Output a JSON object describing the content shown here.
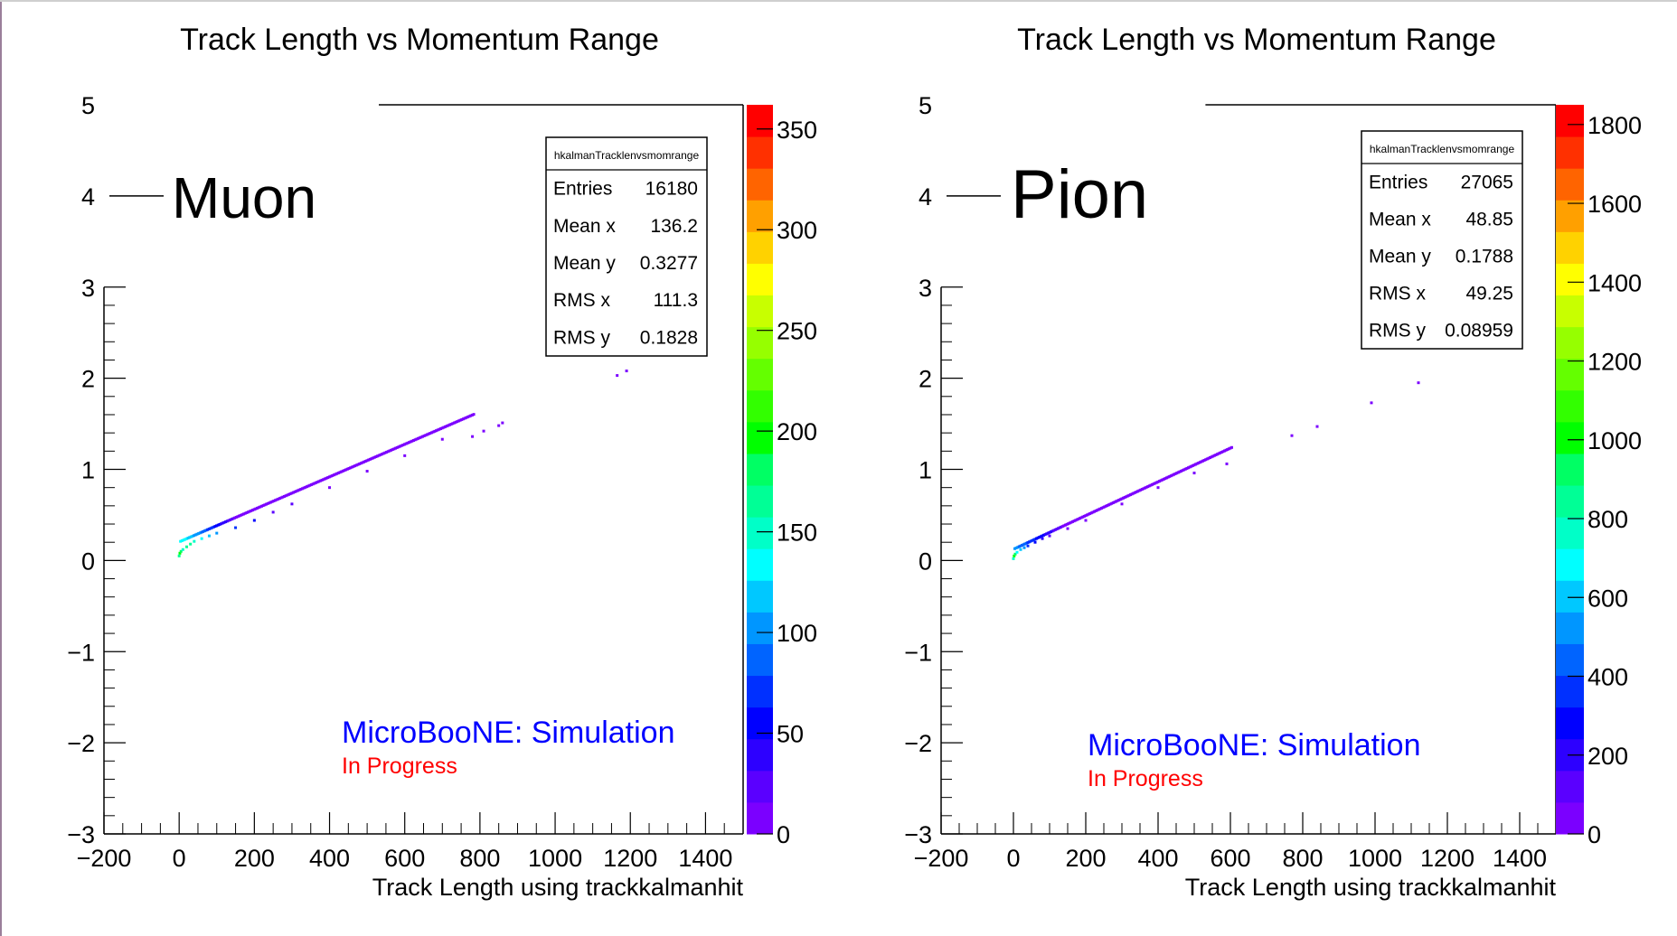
{
  "chart_data": [
    {
      "type": "heatmap",
      "title": "Track Length vs Momentum Range",
      "xlabel": "Track Length using trackkalmanhit",
      "ylabel": "",
      "xlim": [
        -200,
        1500
      ],
      "ylim": [
        -3,
        5
      ],
      "x_ticks": [
        "−200",
        "0",
        "200",
        "400",
        "600",
        "800",
        "1000",
        "1200",
        "1400"
      ],
      "x_tick_values": [
        -200,
        0,
        200,
        400,
        600,
        800,
        1000,
        1200,
        1400
      ],
      "y_ticks": [
        "−3",
        "−2",
        "−1",
        "0",
        "1",
        "2",
        "3",
        "4",
        "5"
      ],
      "y_tick_values": [
        -3,
        -2,
        -1,
        0,
        1,
        2,
        3,
        4,
        5
      ],
      "particle_label": "Muon",
      "particle_label_y": 4,
      "stats": {
        "name": "hkalmanTracklenvsmomrange",
        "rows": [
          {
            "label": "Entries",
            "value": "16180"
          },
          {
            "label": "Mean x",
            "value": "136.2"
          },
          {
            "label": "Mean y",
            "value": "0.3277"
          },
          {
            "label": "RMS x",
            "value": "111.3"
          },
          {
            "label": "RMS y",
            "value": "0.1828"
          }
        ]
      },
      "z_ticks": [
        "0",
        "50",
        "100",
        "150",
        "200",
        "250",
        "300",
        "350"
      ],
      "z_tick_values": [
        0,
        50,
        100,
        150,
        200,
        250,
        300,
        350
      ],
      "z_max": 362,
      "trend": {
        "slope": 0.001786,
        "intercept": 0.21,
        "x_start": 0,
        "x_end": 780
      },
      "points": [
        [
          0,
          0.05,
          160
        ],
        [
          2,
          0.08,
          200
        ],
        [
          5,
          0.1,
          180
        ],
        [
          10,
          0.12,
          150
        ],
        [
          20,
          0.15,
          170
        ],
        [
          30,
          0.18,
          160
        ],
        [
          40,
          0.21,
          150
        ],
        [
          60,
          0.24,
          140
        ],
        [
          80,
          0.27,
          120
        ],
        [
          100,
          0.3,
          100
        ],
        [
          150,
          0.36,
          70
        ],
        [
          200,
          0.44,
          50
        ],
        [
          250,
          0.53,
          30
        ],
        [
          300,
          0.62,
          20
        ],
        [
          400,
          0.8,
          15
        ],
        [
          500,
          0.98,
          10
        ],
        [
          600,
          1.15,
          8
        ],
        [
          700,
          1.33,
          5
        ],
        [
          780,
          1.36,
          4
        ],
        [
          810,
          1.42,
          2
        ],
        [
          850,
          1.48,
          2
        ],
        [
          860,
          1.51,
          2
        ],
        [
          1165,
          2.03,
          2
        ],
        [
          1190,
          2.08,
          2
        ]
      ],
      "watermark": {
        "line1": "MicroBooNE: Simulation",
        "line2": "In Progress"
      }
    },
    {
      "type": "heatmap",
      "title": "Track Length vs Momentum Range",
      "xlabel": "Track Length using trackkalmanhit",
      "ylabel": "",
      "xlim": [
        -200,
        1500
      ],
      "ylim": [
        -3,
        5
      ],
      "x_ticks": [
        "−200",
        "0",
        "200",
        "400",
        "600",
        "800",
        "1000",
        "1200",
        "1400"
      ],
      "x_tick_values": [
        -200,
        0,
        200,
        400,
        600,
        800,
        1000,
        1200,
        1400
      ],
      "y_ticks": [
        "−3",
        "−2",
        "−1",
        "0",
        "1",
        "2",
        "3",
        "4",
        "5"
      ],
      "y_tick_values": [
        -3,
        -2,
        -1,
        0,
        1,
        2,
        3,
        4,
        5
      ],
      "particle_label": "Pion",
      "particle_label_y": 4,
      "stats": {
        "name": "hkalmanTracklenvsmomrange",
        "rows": [
          {
            "label": "Entries",
            "value": "27065"
          },
          {
            "label": "Mean x",
            "value": "48.85"
          },
          {
            "label": "Mean y",
            "value": "0.1788"
          },
          {
            "label": "RMS x",
            "value": "49.25"
          },
          {
            "label": "RMS y",
            "value": "0.08959"
          }
        ]
      },
      "z_ticks": [
        "0",
        "200",
        "400",
        "600",
        "800",
        "1000",
        "1200",
        "1400",
        "1600",
        "1800"
      ],
      "z_tick_values": [
        0,
        200,
        400,
        600,
        800,
        1000,
        1200,
        1400,
        1600,
        1800
      ],
      "z_max": 1850,
      "trend": {
        "slope": 0.00185,
        "intercept": 0.13,
        "x_start": 0,
        "x_end": 600
      },
      "points": [
        [
          0,
          0.02,
          800
        ],
        [
          2,
          0.05,
          1000
        ],
        [
          5,
          0.07,
          900
        ],
        [
          10,
          0.09,
          700
        ],
        [
          20,
          0.12,
          600
        ],
        [
          30,
          0.14,
          500
        ],
        [
          40,
          0.16,
          400
        ],
        [
          60,
          0.2,
          300
        ],
        [
          80,
          0.24,
          200
        ],
        [
          100,
          0.27,
          150
        ],
        [
          150,
          0.35,
          80
        ],
        [
          200,
          0.44,
          50
        ],
        [
          300,
          0.62,
          30
        ],
        [
          400,
          0.8,
          15
        ],
        [
          500,
          0.96,
          8
        ],
        [
          590,
          1.06,
          3
        ],
        [
          770,
          1.37,
          2
        ],
        [
          840,
          1.47,
          2
        ],
        [
          990,
          1.73,
          2
        ],
        [
          1120,
          1.95,
          2
        ]
      ],
      "watermark": {
        "line1": "MicroBooNE: Simulation",
        "line2": "In Progress"
      }
    }
  ],
  "palette": [
    "#7b00ff",
    "#5a00ff",
    "#2d00ff",
    "#0000ff",
    "#0030ff",
    "#0064ff",
    "#0096ff",
    "#00c8ff",
    "#00ffff",
    "#00ffc8",
    "#00ff96",
    "#00ff64",
    "#00ff00",
    "#32ff00",
    "#64ff00",
    "#96ff00",
    "#c8ff00",
    "#ffff00",
    "#ffd200",
    "#ffa000",
    "#ff6400",
    "#ff3000",
    "#ff0000"
  ],
  "colors": {
    "watermark_primary": "#0000ff",
    "watermark_secondary": "#ff0000",
    "axis": "#000000"
  }
}
